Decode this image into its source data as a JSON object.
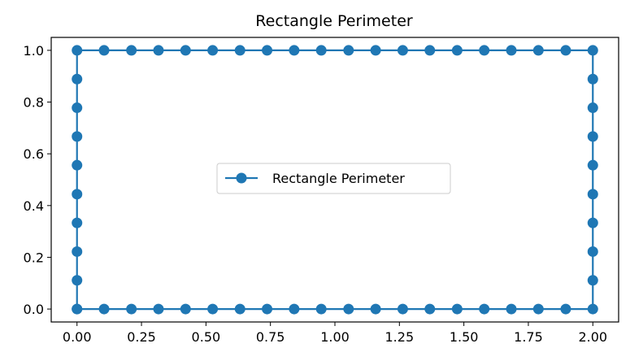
{
  "chart_data": {
    "type": "line",
    "title": "Rectangle Perimeter",
    "xlabel": "",
    "ylabel": "",
    "xlim": [
      -0.1,
      2.1
    ],
    "ylim": [
      -0.05,
      1.05
    ],
    "xticks": [
      0.0,
      0.25,
      0.5,
      0.75,
      1.0,
      1.25,
      1.5,
      1.75,
      2.0
    ],
    "xtick_labels": [
      "0.00",
      "0.25",
      "0.50",
      "0.75",
      "1.00",
      "1.25",
      "1.50",
      "1.75",
      "2.00"
    ],
    "yticks": [
      0.0,
      0.2,
      0.4,
      0.6,
      0.8,
      1.0
    ],
    "ytick_labels": [
      "0.0",
      "0.2",
      "0.4",
      "0.6",
      "0.8",
      "1.0"
    ],
    "grid": false,
    "legend_position": "center",
    "series": [
      {
        "name": "Rectangle Perimeter",
        "color": "#1f77b4",
        "marker": "circle",
        "x": [
          0.0,
          0.105,
          0.211,
          0.316,
          0.421,
          0.526,
          0.632,
          0.737,
          0.842,
          0.947,
          1.053,
          1.158,
          1.263,
          1.368,
          1.474,
          1.579,
          1.684,
          1.789,
          1.895,
          2.0,
          2.0,
          2.0,
          2.0,
          2.0,
          2.0,
          2.0,
          2.0,
          2.0,
          2.0,
          1.895,
          1.789,
          1.684,
          1.579,
          1.474,
          1.368,
          1.263,
          1.158,
          1.053,
          0.947,
          0.842,
          0.737,
          0.632,
          0.526,
          0.421,
          0.316,
          0.211,
          0.105,
          0.0,
          0.0,
          0.0,
          0.0,
          0.0,
          0.0,
          0.0,
          0.0,
          0.0,
          0.0
        ],
        "y": [
          0.0,
          0.0,
          0.0,
          0.0,
          0.0,
          0.0,
          0.0,
          0.0,
          0.0,
          0.0,
          0.0,
          0.0,
          0.0,
          0.0,
          0.0,
          0.0,
          0.0,
          0.0,
          0.0,
          0.0,
          0.111,
          0.222,
          0.333,
          0.444,
          0.556,
          0.667,
          0.778,
          0.889,
          1.0,
          1.0,
          1.0,
          1.0,
          1.0,
          1.0,
          1.0,
          1.0,
          1.0,
          1.0,
          1.0,
          1.0,
          1.0,
          1.0,
          1.0,
          1.0,
          1.0,
          1.0,
          1.0,
          1.0,
          0.889,
          0.778,
          0.667,
          0.556,
          0.444,
          0.333,
          0.222,
          0.111,
          0.0
        ]
      }
    ]
  }
}
